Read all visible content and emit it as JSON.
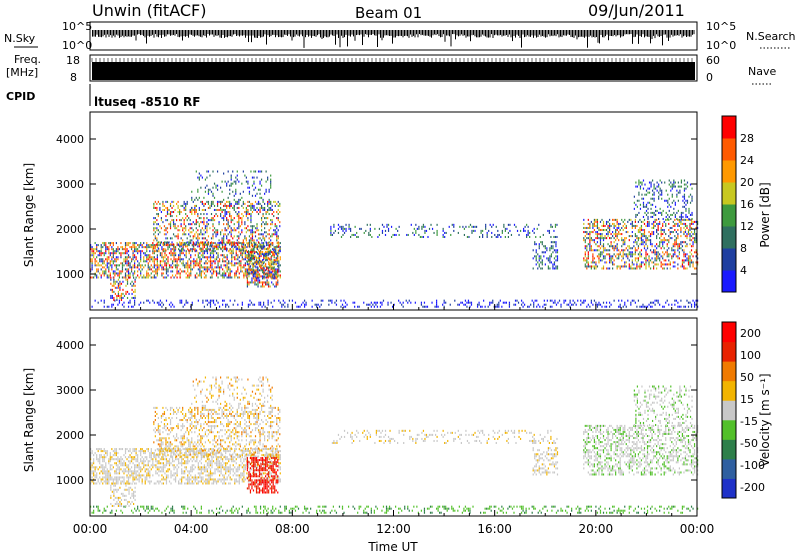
{
  "header": {
    "station": "Unwin (fitACF)",
    "beam": "Beam 01",
    "date": "09/Jun/2011"
  },
  "strips": {
    "nsky_label": "N.Sky",
    "nsky_ticks": [
      "10^5",
      "10^0"
    ],
    "nsearch_label": "N.Search",
    "freq_label_1": "Freq.",
    "freq_label_2": "[MHz]",
    "freq_ticks": [
      "18",
      "8"
    ],
    "nave_label": "Nave",
    "nave_ticks": [
      "60",
      "0"
    ],
    "cpid_label": "CPID",
    "cpid_value": "ltuseq -8510 RF"
  },
  "chart_data": [
    {
      "type": "heatmap",
      "name": "power",
      "ylabel": "Slant Range [km]",
      "yticks": [
        1000,
        2000,
        3000,
        4000
      ],
      "ylim": [
        200,
        4600
      ],
      "xlim_hours": [
        0,
        24
      ],
      "colorbar_label": "Power [dB]",
      "colorbar_ticks": [
        "4",
        "8",
        "12",
        "16",
        "20",
        "24",
        "28"
      ],
      "colorbar_colors": [
        "#1a1aff",
        "#1f3fa0",
        "#2f6f5f",
        "#3e9a3e",
        "#c8c820",
        "#ff9900",
        "#ff5a00",
        "#ff0000"
      ]
    },
    {
      "type": "heatmap",
      "name": "velocity",
      "ylabel": "Slant Range [km]",
      "yticks": [
        1000,
        2000,
        3000,
        4000
      ],
      "ylim": [
        200,
        4600
      ],
      "xlim_hours": [
        0,
        24
      ],
      "xticks": [
        "00:00",
        "04:00",
        "08:00",
        "12:00",
        "16:00",
        "20:00",
        "00:00"
      ],
      "xlabel": "Time UT",
      "colorbar_label": "Velocity [m s⁻¹]",
      "colorbar_ticks": [
        "200",
        "100",
        "50",
        "15",
        "-15",
        "-50",
        "-100",
        "-200"
      ],
      "colorbar_colors": [
        "#1f32c8",
        "#2f5fa0",
        "#2e7f4a",
        "#52c02a",
        "#c8c8c8",
        "#f2b400",
        "#f07a00",
        "#e82200",
        "#ff0000"
      ]
    }
  ]
}
